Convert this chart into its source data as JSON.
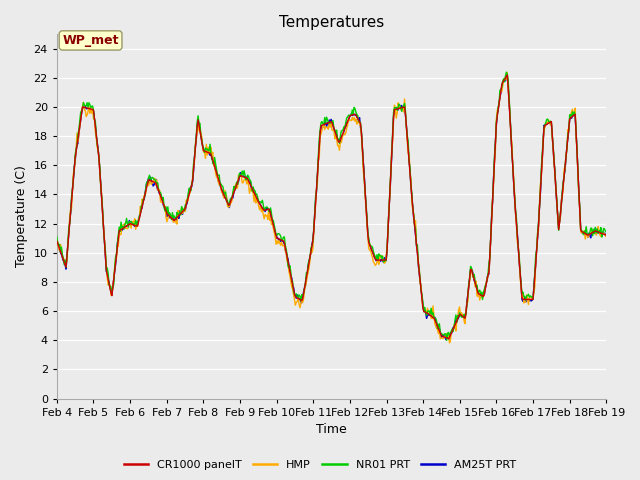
{
  "title": "Temperatures",
  "xlabel": "Time",
  "ylabel": "Temperature (C)",
  "ylim": [
    0,
    25
  ],
  "yticks": [
    0,
    2,
    4,
    6,
    8,
    10,
    12,
    14,
    16,
    18,
    20,
    22,
    24
  ],
  "x_labels": [
    "Feb 4",
    "Feb 5",
    "Feb 6",
    "Feb 7",
    "Feb 8",
    "Feb 9",
    "Feb 10",
    "Feb 11",
    "Feb 12",
    "Feb 13",
    "Feb 14",
    "Feb 15",
    "Feb 16",
    "Feb 17",
    "Feb 18",
    "Feb 19"
  ],
  "legend_labels": [
    "CR1000 panelT",
    "HMP",
    "NR01 PRT",
    "AM25T PRT"
  ],
  "line_colors": [
    "#cc0000",
    "#ffaa00",
    "#00cc00",
    "#0000cc"
  ],
  "background_color": "#ebebeb",
  "annotation_text": "WP_met",
  "annotation_color": "#8b0000",
  "annotation_bg": "#ffffcc",
  "title_fontsize": 11,
  "axis_fontsize": 9,
  "tick_fontsize": 8,
  "keypoints_t": [
    0,
    0.25,
    0.5,
    0.7,
    1.0,
    1.15,
    1.35,
    1.5,
    1.7,
    2.0,
    2.2,
    2.5,
    2.7,
    3.0,
    3.2,
    3.5,
    3.7,
    3.85,
    4.0,
    4.2,
    4.5,
    4.7,
    5.0,
    5.2,
    5.5,
    5.65,
    5.8,
    6.0,
    6.2,
    6.5,
    6.7,
    7.0,
    7.2,
    7.5,
    7.7,
    8.0,
    8.15,
    8.3,
    8.5,
    8.7,
    9.0,
    9.2,
    9.5,
    9.7,
    10.0,
    10.15,
    10.3,
    10.5,
    10.7,
    11.0,
    11.15,
    11.3,
    11.5,
    11.65,
    11.8,
    12.0,
    12.15,
    12.3,
    12.5,
    12.7,
    13.0,
    13.15,
    13.3,
    13.5,
    13.7,
    14.0,
    14.15,
    14.3,
    14.5,
    14.7,
    15.0
  ],
  "keypoints_v": [
    10.8,
    9.0,
    16.5,
    20.0,
    19.8,
    16.5,
    8.8,
    7.0,
    11.5,
    12.0,
    11.8,
    15.0,
    14.8,
    12.7,
    12.2,
    13.0,
    14.8,
    19.2,
    17.0,
    16.8,
    14.3,
    13.2,
    15.3,
    15.1,
    13.5,
    12.9,
    13.0,
    11.0,
    10.8,
    7.0,
    6.7,
    11.0,
    18.7,
    19.0,
    17.5,
    19.4,
    19.5,
    18.8,
    10.8,
    9.5,
    9.5,
    19.8,
    20.0,
    13.5,
    6.0,
    5.8,
    5.5,
    4.3,
    4.1,
    5.8,
    5.5,
    9.0,
    7.2,
    7.0,
    8.8,
    19.0,
    21.6,
    22.2,
    13.5,
    6.8,
    6.8,
    12.0,
    18.7,
    19.0,
    11.5,
    19.2,
    19.5,
    11.5,
    11.2,
    11.5,
    11.2
  ]
}
